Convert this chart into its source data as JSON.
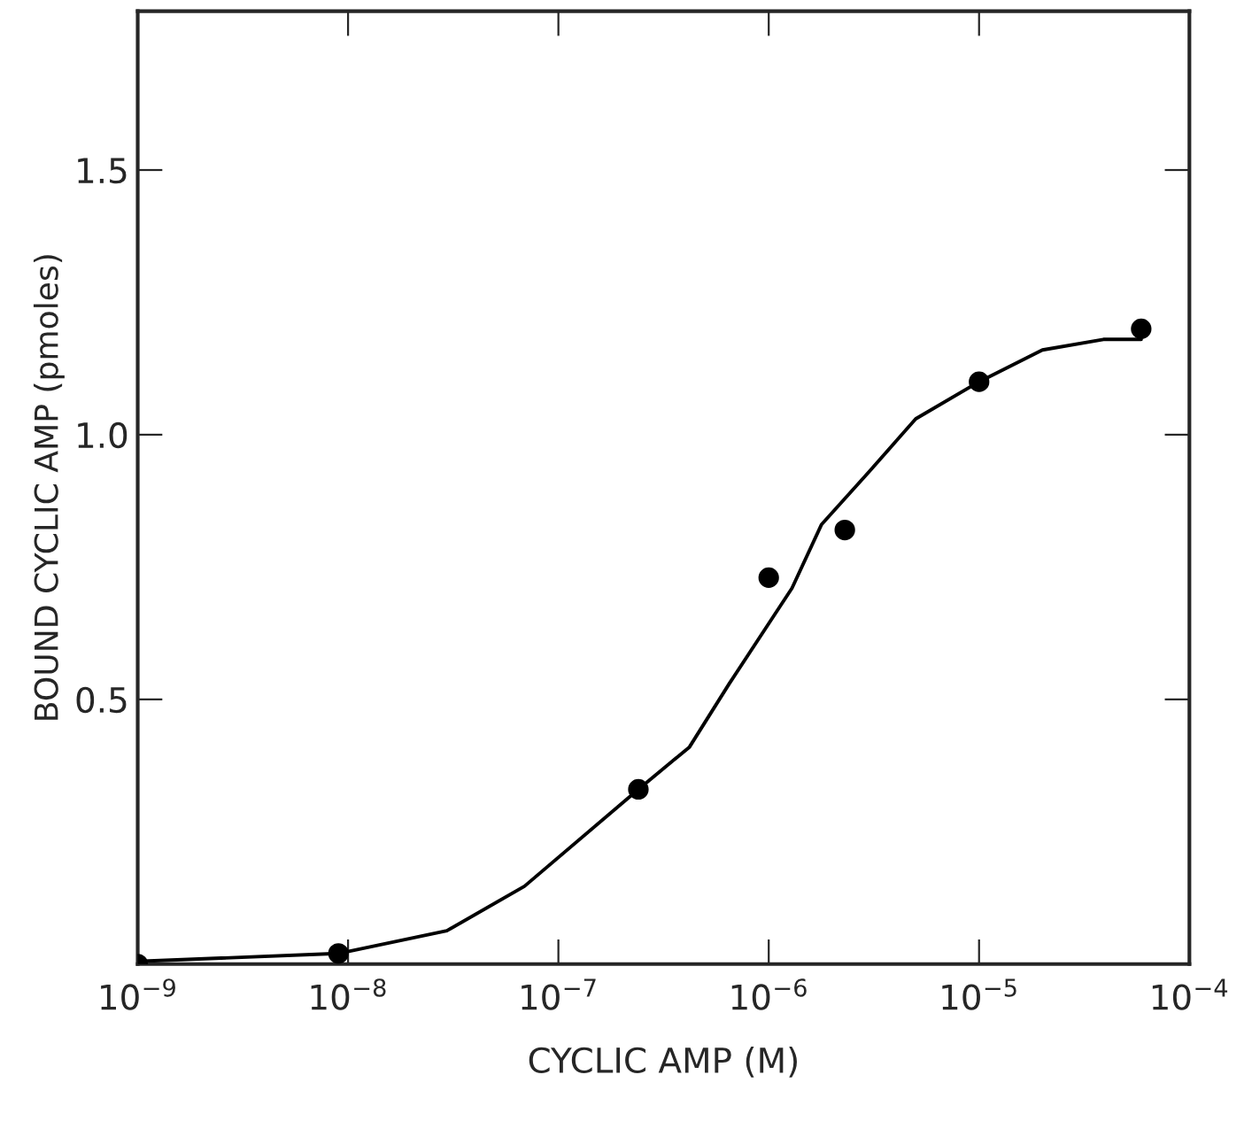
{
  "chart_data": {
    "type": "scatter",
    "xlabel": "CYCLIC AMP (M)",
    "ylabel": "BOUND CYCLIC AMP (pmoles)",
    "log": "x",
    "grid": false,
    "legend": false,
    "xlim": [
      1e-09,
      0.0001
    ],
    "xticks": [
      {
        "value": 1e-09,
        "label": "10$^{−9}$"
      },
      {
        "value": 1e-08,
        "label": "10$^{−8}$"
      },
      {
        "value": 1e-07,
        "label": "10$^{−7}$"
      },
      {
        "value": 1e-06,
        "label": "10$^{−6}$"
      },
      {
        "value": 1e-05,
        "label": "10$^{−5}$"
      },
      {
        "value": 0.0001,
        "label": "10$^{−4}$"
      }
    ],
    "ylim": [
      0,
      1.8
    ],
    "yticks": [
      {
        "value": 0.5,
        "label": "0.5"
      },
      {
        "value": 1.0,
        "label": "1.0"
      },
      {
        "value": 1.5,
        "label": "1.5"
      }
    ],
    "series": [
      {
        "color": "#000000",
        "marker": "circle",
        "x": [
          1e-09,
          9e-09,
          2.4e-07,
          1e-06,
          2.3e-06,
          1e-05,
          5.9e-05
        ],
        "values": [
          0.0,
          0.02,
          0.33,
          0.73,
          0.82,
          1.1,
          1.2
        ]
      },
      {
        "type": "line",
        "color": "#000000",
        "marker": "none",
        "line_style": "solid",
        "x": [
          1e-09,
          9e-09,
          2.95e-08,
          6.9e-08,
          2.4e-07,
          4.2e-07,
          6.5e-07,
          1.29e-06,
          1.78e-06,
          3e-06,
          5e-06,
          1e-05,
          2e-05,
          3.9e-05,
          5.9e-05
        ],
        "values": [
          0.005,
          0.02,
          0.063,
          0.147,
          0.33,
          0.41,
          0.53,
          0.71,
          0.83,
          0.93,
          1.03,
          1.1,
          1.16,
          1.18,
          1.18
        ]
      }
    ]
  }
}
